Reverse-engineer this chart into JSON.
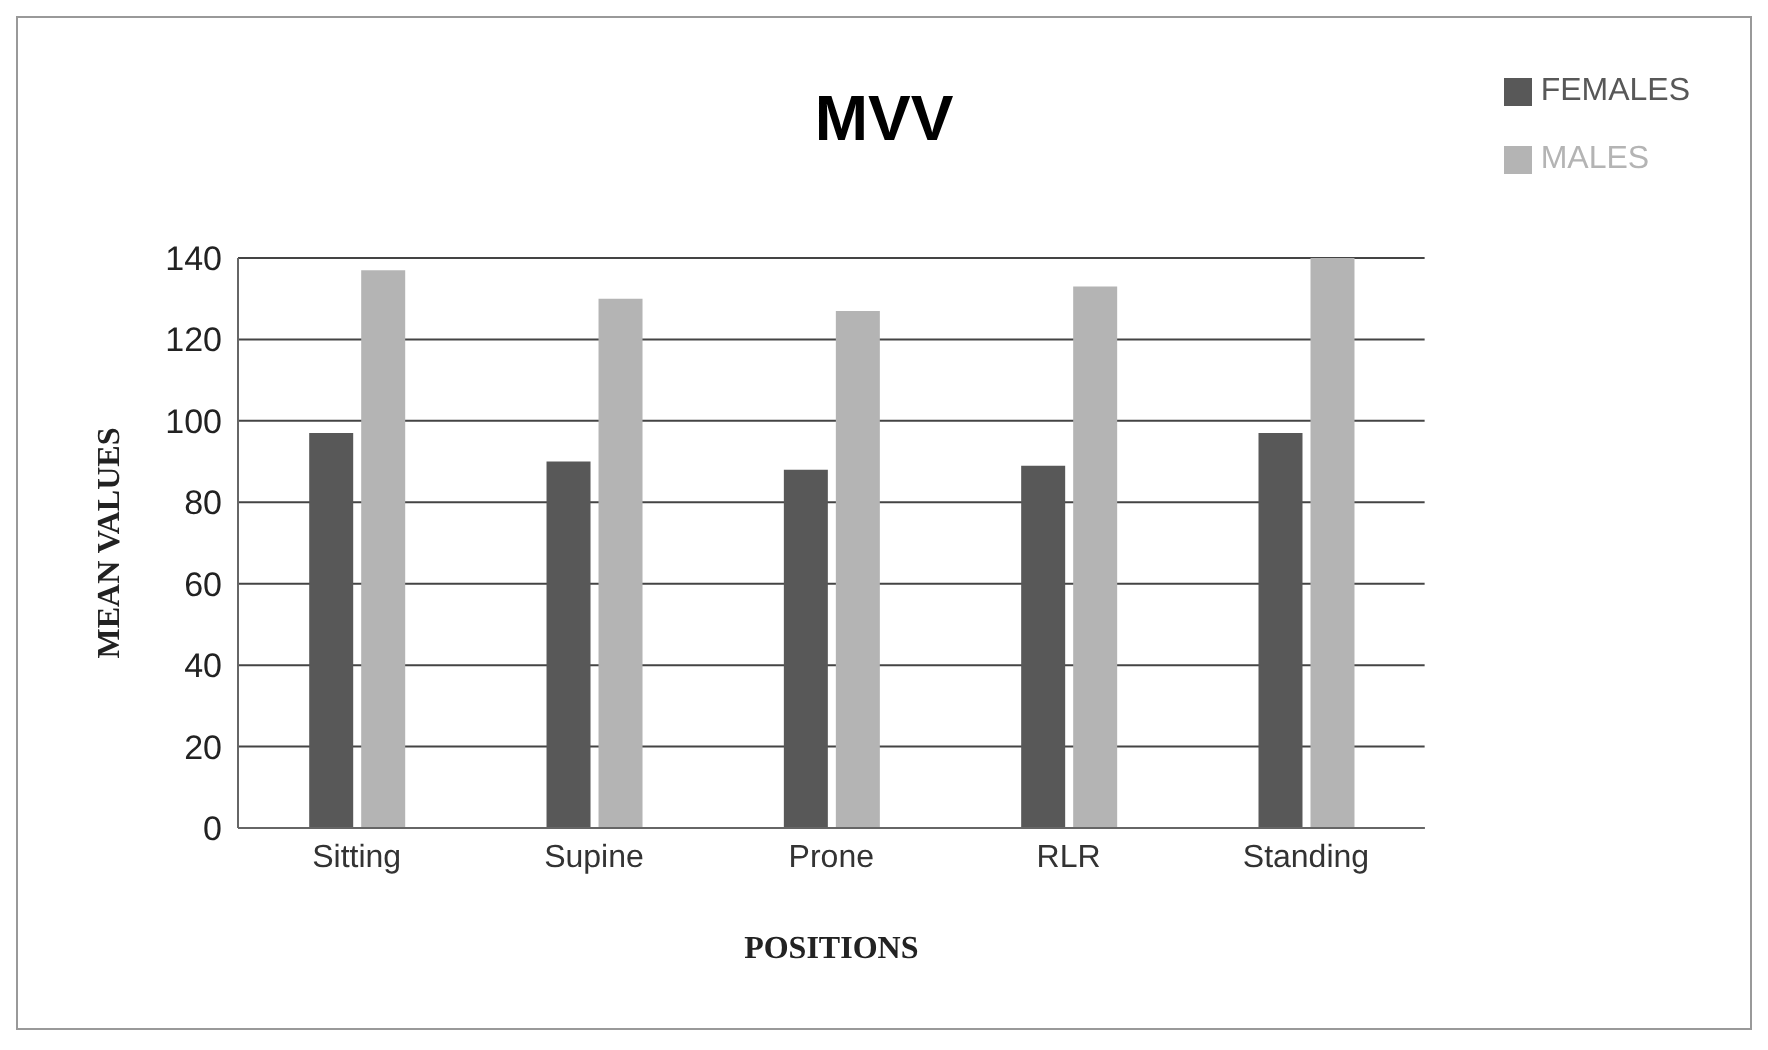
{
  "chart_data": {
    "type": "bar",
    "title": "MVV",
    "xlabel": "POSITIONS",
    "ylabel": "MEAN VALUES",
    "categories": [
      "Sitting",
      "Supine",
      "Prone",
      "RLR",
      "Standing"
    ],
    "series": [
      {
        "name": "FEMALES",
        "color": "#585858",
        "values": [
          97,
          90,
          88,
          89,
          97
        ]
      },
      {
        "name": "MALES",
        "color": "#b4b4b4",
        "values": [
          137,
          130,
          127,
          133,
          140
        ]
      }
    ],
    "ylim": [
      0,
      140
    ],
    "yticks": [
      0,
      20,
      40,
      60,
      80,
      100,
      120,
      140
    ],
    "grid": "y",
    "legend": "top right"
  }
}
